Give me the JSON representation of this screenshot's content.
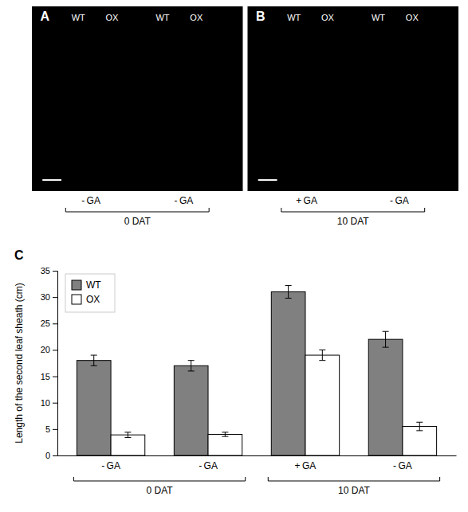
{
  "chart_data": {
    "type": "bar",
    "ylabel": "Length of the second leaf sheath (cm)",
    "categories": [
      "- GA",
      "- GA",
      "+ GA",
      "- GA"
    ],
    "timepoints": [
      "0 DAT",
      "0 DAT",
      "10 DAT",
      "10 DAT"
    ],
    "series": [
      {
        "name": "WT",
        "color": "#808080",
        "values": [
          18.0,
          17.0,
          31.0,
          22.0
        ],
        "errors": [
          1.0,
          1.0,
          1.2,
          1.5
        ]
      },
      {
        "name": "OX",
        "color": "#ffffff",
        "values": [
          3.9,
          4.0,
          19.0,
          5.5
        ],
        "errors": [
          0.5,
          0.4,
          1.0,
          0.8
        ]
      }
    ],
    "ylim": [
      0,
      35
    ],
    "yticks": [
      0,
      5,
      10,
      15,
      20,
      25,
      30,
      35
    ],
    "grid": false,
    "legend": "upper left",
    "panel_label": "C",
    "photos": [
      {
        "label": "A",
        "sub_labels": [
          "WT",
          "OX",
          "WT",
          "OX"
        ],
        "group_labels": [
          "- GA",
          "- GA"
        ],
        "timepoint": "0 DAT"
      },
      {
        "label": "B",
        "sub_labels": [
          "WT",
          "OX",
          "WT",
          "OX"
        ],
        "group_labels": [
          "+ GA",
          "- GA"
        ],
        "timepoint": "10 DAT"
      }
    ]
  }
}
